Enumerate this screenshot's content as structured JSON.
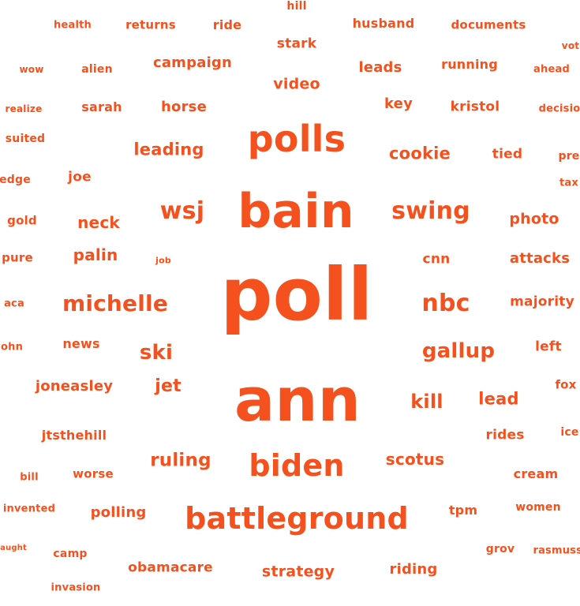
{
  "color": "#f4511e",
  "words": [
    {
      "text": "hill"
    },
    {
      "text": "health"
    },
    {
      "text": "returns"
    },
    {
      "text": "ride"
    },
    {
      "text": "husband"
    },
    {
      "text": "documents"
    },
    {
      "text": "vot"
    },
    {
      "text": "stark"
    },
    {
      "text": "wow"
    },
    {
      "text": "alien"
    },
    {
      "text": "campaign"
    },
    {
      "text": "leads"
    },
    {
      "text": "running"
    },
    {
      "text": "ahead"
    },
    {
      "text": "video"
    },
    {
      "text": "realize"
    },
    {
      "text": "sarah"
    },
    {
      "text": "horse"
    },
    {
      "text": "key"
    },
    {
      "text": "kristol"
    },
    {
      "text": "decisio"
    },
    {
      "text": "polls"
    },
    {
      "text": "suited"
    },
    {
      "text": "leading"
    },
    {
      "text": "cookie"
    },
    {
      "text": "tied"
    },
    {
      "text": "pre"
    },
    {
      "text": "edge"
    },
    {
      "text": "joe"
    },
    {
      "text": "tax"
    },
    {
      "text": "bain"
    },
    {
      "text": "wsj"
    },
    {
      "text": "swing"
    },
    {
      "text": "gold"
    },
    {
      "text": "neck"
    },
    {
      "text": "photo"
    },
    {
      "text": "pure"
    },
    {
      "text": "palin"
    },
    {
      "text": "job"
    },
    {
      "text": "cnn"
    },
    {
      "text": "attacks"
    },
    {
      "text": "poll"
    },
    {
      "text": "michelle"
    },
    {
      "text": "nbc"
    },
    {
      "text": "majority"
    },
    {
      "text": "aca"
    },
    {
      "text": "ohn"
    },
    {
      "text": "news"
    },
    {
      "text": "ski"
    },
    {
      "text": "gallup"
    },
    {
      "text": "left"
    },
    {
      "text": "joneasley"
    },
    {
      "text": "jet"
    },
    {
      "text": "ann"
    },
    {
      "text": "kill"
    },
    {
      "text": "lead"
    },
    {
      "text": "fox"
    },
    {
      "text": "jtsthehill"
    },
    {
      "text": "rides"
    },
    {
      "text": "ice"
    },
    {
      "text": "ruling"
    },
    {
      "text": "biden"
    },
    {
      "text": "scotus"
    },
    {
      "text": "bill"
    },
    {
      "text": "worse"
    },
    {
      "text": "cream"
    },
    {
      "text": "invented"
    },
    {
      "text": "polling"
    },
    {
      "text": "battleground"
    },
    {
      "text": "tpm"
    },
    {
      "text": "women"
    },
    {
      "text": "caught"
    },
    {
      "text": "camp"
    },
    {
      "text": "grov"
    },
    {
      "text": "rasmussen"
    },
    {
      "text": "obamacare"
    },
    {
      "text": "strategy"
    },
    {
      "text": "riding"
    },
    {
      "text": "invasion"
    }
  ]
}
